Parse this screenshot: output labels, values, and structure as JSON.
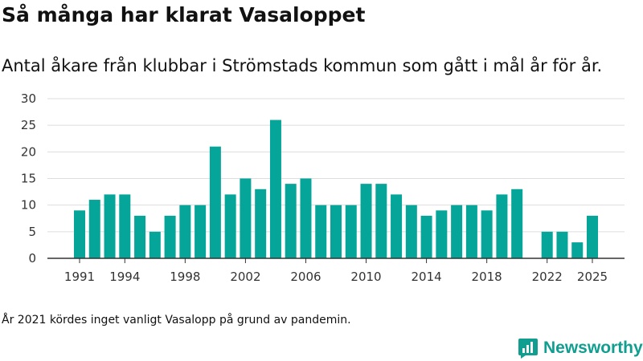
{
  "title": "Så många har klarat Vasaloppet",
  "subtitle": "Antal åkare från klubbar i Strömstads kommun som gått i mål år för år.",
  "note": "År 2021 kördes inget vanligt Vasalopp på grund av pandemin.",
  "brand": {
    "name": "Newsworthy",
    "icon": "newsworthy-logo-icon",
    "color": "#0f9e8f"
  },
  "colors": {
    "bar": "#05a59a",
    "grid": "#dddddd",
    "axis": "#333333"
  },
  "chart_data": {
    "type": "bar",
    "title": "Så många har klarat Vasaloppet",
    "xlabel": "",
    "ylabel": "",
    "ylim": [
      0,
      30
    ],
    "yticks": [
      0,
      5,
      10,
      15,
      20,
      25,
      30
    ],
    "xticks": [
      "1991",
      "1994",
      "1998",
      "2002",
      "2006",
      "2010",
      "2014",
      "2018",
      "2022",
      "2025"
    ],
    "grid": true,
    "categories": [
      "1991",
      "1992",
      "1993",
      "1994",
      "1995",
      "1996",
      "1997",
      "1998",
      "1999",
      "2000",
      "2001",
      "2002",
      "2003",
      "2004",
      "2005",
      "2006",
      "2007",
      "2008",
      "2009",
      "2010",
      "2011",
      "2012",
      "2013",
      "2014",
      "2015",
      "2016",
      "2017",
      "2018",
      "2019",
      "2020",
      "2021",
      "2022",
      "2023",
      "2024",
      "2025"
    ],
    "values": [
      9,
      11,
      12,
      12,
      8,
      5,
      8,
      10,
      10,
      21,
      12,
      15,
      13,
      26,
      14,
      15,
      10,
      10,
      10,
      14,
      14,
      12,
      10,
      8,
      9,
      10,
      10,
      9,
      12,
      13,
      null,
      5,
      5,
      3,
      8
    ]
  }
}
